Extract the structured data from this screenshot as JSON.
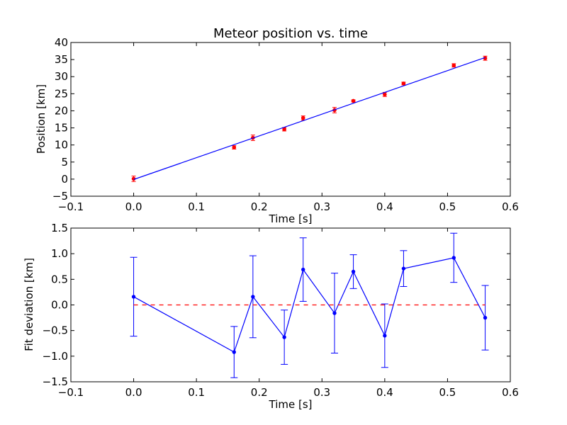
{
  "chart_data": [
    {
      "type": "scatter",
      "title": "Meteor position vs. time",
      "xlabel": "Time [s]",
      "ylabel": "Position [km]",
      "xlim": [
        -0.1,
        0.6
      ],
      "ylim": [
        -5,
        40
      ],
      "xticks": [
        "−0.1",
        "0.0",
        "0.1",
        "0.2",
        "0.3",
        "0.4",
        "0.5",
        "0.6"
      ],
      "yticks": [
        "−5",
        "0",
        "5",
        "10",
        "15",
        "20",
        "25",
        "30",
        "35",
        "40"
      ],
      "grid": false,
      "series": [
        {
          "kind": "errorbar-points",
          "color": "#ff0000",
          "x": [
            0.0,
            0.16,
            0.19,
            0.24,
            0.27,
            0.32,
            0.35,
            0.4,
            0.43,
            0.51,
            0.56
          ],
          "y": [
            0.1,
            9.3,
            12.1,
            14.6,
            17.9,
            20.2,
            22.9,
            24.8,
            28.0,
            33.3,
            35.4
          ],
          "yerr": [
            0.8,
            0.5,
            0.8,
            0.5,
            0.6,
            0.8,
            0.3,
            0.6,
            0.4,
            0.5,
            0.6
          ]
        },
        {
          "kind": "fit-line",
          "color": "#0000ff",
          "x": [
            0.0,
            0.56
          ],
          "y": [
            -0.1,
            35.6
          ]
        }
      ]
    },
    {
      "type": "line",
      "title": "",
      "xlabel": "Time [s]",
      "ylabel": "Fit deviation [km]",
      "xlim": [
        -0.1,
        0.6
      ],
      "ylim": [
        -1.5,
        1.5
      ],
      "xticks": [
        "−0.1",
        "0.0",
        "0.1",
        "0.2",
        "0.3",
        "0.4",
        "0.5",
        "0.6"
      ],
      "yticks": [
        "−1.5",
        "−1.0",
        "−0.5",
        "0.0",
        "0.5",
        "1.0",
        "1.5"
      ],
      "grid": false,
      "series": [
        {
          "kind": "errorbar-line",
          "color": "#0000ff",
          "x": [
            0.0,
            0.16,
            0.19,
            0.24,
            0.27,
            0.32,
            0.35,
            0.4,
            0.43,
            0.51,
            0.56
          ],
          "y": [
            0.16,
            -0.92,
            0.16,
            -0.63,
            0.69,
            -0.16,
            0.65,
            -0.6,
            0.71,
            0.92,
            -0.25
          ],
          "yerr": [
            0.77,
            0.5,
            0.8,
            0.53,
            0.62,
            0.78,
            0.33,
            0.62,
            0.35,
            0.48,
            0.63
          ]
        },
        {
          "kind": "reference-line",
          "color": "#ff0000",
          "style": "dashed",
          "x": [
            0.0,
            0.56
          ],
          "y": [
            0.0,
            0.0
          ]
        }
      ]
    }
  ]
}
